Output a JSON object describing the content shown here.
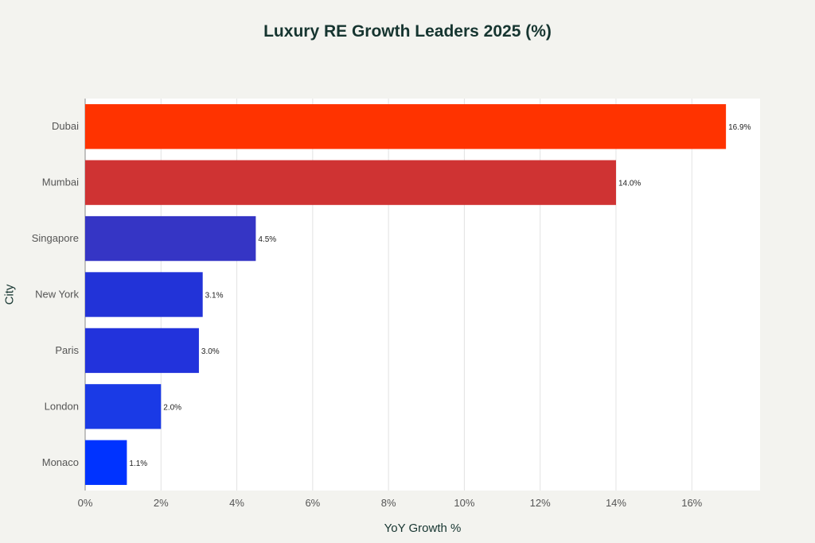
{
  "chart_data": {
    "type": "bar",
    "orientation": "horizontal",
    "title": "Luxury RE Growth Leaders 2025 (%)",
    "xlabel": "YoY Growth %",
    "ylabel": "City",
    "categories": [
      "Dubai",
      "Mumbai",
      "Singapore",
      "New York",
      "Paris",
      "London",
      "Monaco"
    ],
    "values": [
      16.9,
      14.0,
      4.5,
      3.1,
      3.0,
      2.0,
      1.1
    ],
    "data_labels": [
      "16.9%",
      "14.0%",
      "4.5%",
      "3.1%",
      "3.0%",
      "2.0%",
      "1.1%"
    ],
    "colors": [
      "#ff3300",
      "#cf3333",
      "#3535c5",
      "#2233d8",
      "#2233dc",
      "#1a3ae6",
      "#0033ff"
    ],
    "xticks": [
      0,
      2,
      4,
      6,
      8,
      10,
      12,
      14,
      16
    ],
    "xtick_labels": [
      "0%",
      "2%",
      "4%",
      "6%",
      "8%",
      "10%",
      "12%",
      "14%",
      "16%"
    ],
    "xlim": [
      0,
      17.8
    ],
    "grid": true
  }
}
